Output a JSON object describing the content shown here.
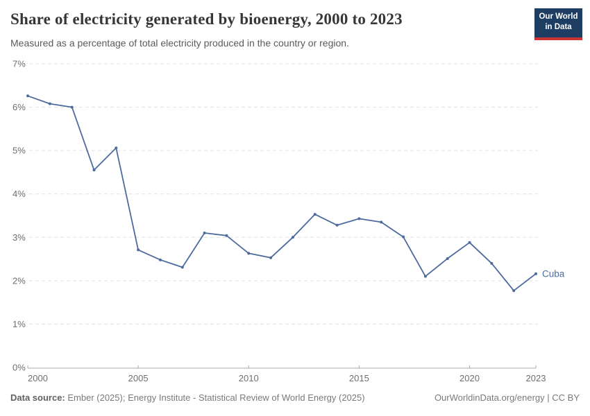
{
  "header": {
    "title": "Share of electricity generated by bioenergy, 2000 to 2023",
    "subtitle": "Measured as a percentage of total electricity produced in the country or region.",
    "logo": {
      "line1": "Our World",
      "line2": "in Data",
      "bg_color": "#1d3d63",
      "accent_color": "#cc3434"
    }
  },
  "chart_data": {
    "type": "line",
    "title": "Share of electricity generated by bioenergy, 2000 to 2023",
    "xlabel": "",
    "ylabel": "",
    "ylim": [
      0,
      7
    ],
    "grid": "horizontal-dashed",
    "legend_position": "end-of-line-label",
    "x": [
      2000,
      2001,
      2002,
      2003,
      2004,
      2005,
      2006,
      2007,
      2008,
      2009,
      2010,
      2011,
      2012,
      2013,
      2014,
      2015,
      2016,
      2017,
      2018,
      2019,
      2020,
      2021,
      2022,
      2023
    ],
    "series": [
      {
        "name": "Cuba",
        "color": "#4c6a9d",
        "values": [
          6.26,
          6.08,
          6.0,
          4.55,
          5.06,
          2.71,
          2.48,
          2.31,
          3.1,
          3.04,
          2.63,
          2.53,
          3.0,
          3.53,
          3.28,
          3.43,
          3.35,
          3.01,
          2.1,
          2.51,
          2.88,
          2.4,
          1.77,
          2.16
        ]
      }
    ],
    "yticks": {
      "values": [
        0,
        1,
        2,
        3,
        4,
        5,
        6,
        7
      ],
      "labels": [
        "0%",
        "1%",
        "2%",
        "3%",
        "4%",
        "5%",
        "6%",
        "7%"
      ]
    },
    "xticks": {
      "values": [
        2000,
        2005,
        2010,
        2015,
        2020,
        2023
      ],
      "labels": [
        "2000",
        "2005",
        "2010",
        "2015",
        "2020",
        "2023"
      ]
    },
    "entity_label": "Cuba"
  },
  "footer": {
    "source_label": "Data source:",
    "source_text": " Ember (2025); Energy Institute - Statistical Review of World Energy (2025)",
    "right_text": "OurWorldinData.org/energy | CC BY"
  },
  "colors": {
    "line": "#4c6a9d",
    "gridline": "#e0e0e0",
    "axis_line": "#a9a9a9",
    "tick_label": "#6e6e6e",
    "title": "#373737",
    "subtitle": "#5a5a5a"
  }
}
